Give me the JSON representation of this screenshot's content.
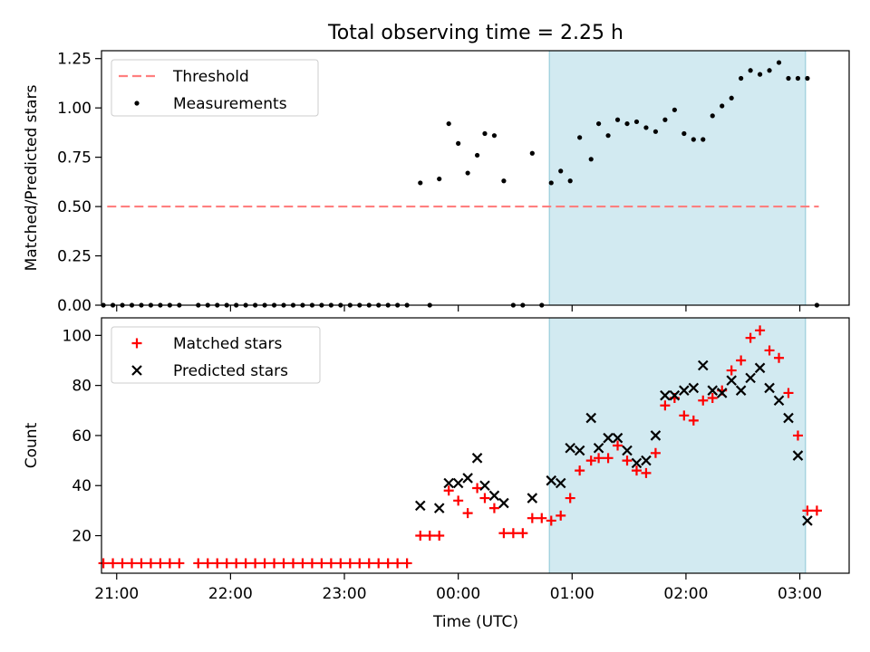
{
  "title": "Total observing time = 2.25 h",
  "chart_data": [
    {
      "type": "scatter",
      "ylabel": "Matched/Predicted stars",
      "ylim": [
        0,
        1.29
      ],
      "yticks": [
        0,
        0.25,
        0.5,
        0.75,
        1.0,
        1.25
      ],
      "ytick_labels": [
        "0.00",
        "0.25",
        "0.50",
        "0.75",
        "1.00",
        "1.25"
      ],
      "threshold": 0.5,
      "threshold_x": [
        "20:55",
        "03:10"
      ],
      "shaded_span": [
        "00:48",
        "03:03"
      ],
      "legend": {
        "placement": "top-left",
        "entries": [
          {
            "label": "Threshold",
            "key": "threshold"
          },
          {
            "label": "Measurements",
            "key": "measurements"
          }
        ]
      },
      "series": [
        {
          "name": "Measurements",
          "points": [
            [
              "20:53",
              0
            ],
            [
              "20:58",
              0
            ],
            [
              "21:03",
              0
            ],
            [
              "21:08",
              0
            ],
            [
              "21:13",
              0
            ],
            [
              "21:18",
              0
            ],
            [
              "21:23",
              0
            ],
            [
              "21:28",
              0
            ],
            [
              "21:33",
              0
            ],
            [
              "21:43",
              0
            ],
            [
              "21:48",
              0
            ],
            [
              "21:53",
              0
            ],
            [
              "21:58",
              0
            ],
            [
              "22:03",
              0
            ],
            [
              "22:08",
              0
            ],
            [
              "22:13",
              0
            ],
            [
              "22:18",
              0
            ],
            [
              "22:23",
              0
            ],
            [
              "22:28",
              0
            ],
            [
              "22:33",
              0
            ],
            [
              "22:38",
              0
            ],
            [
              "22:43",
              0
            ],
            [
              "22:48",
              0
            ],
            [
              "22:53",
              0
            ],
            [
              "22:58",
              0
            ],
            [
              "23:03",
              0
            ],
            [
              "23:08",
              0
            ],
            [
              "23:13",
              0
            ],
            [
              "23:18",
              0
            ],
            [
              "23:23",
              0
            ],
            [
              "23:28",
              0
            ],
            [
              "23:33",
              0
            ],
            [
              "23:40",
              0.62
            ],
            [
              "23:45",
              0
            ],
            [
              "23:50",
              0.64
            ],
            [
              "23:55",
              0.92
            ],
            [
              "00:00",
              0.82
            ],
            [
              "00:05",
              0.67
            ],
            [
              "00:10",
              0.76
            ],
            [
              "00:14",
              0.87
            ],
            [
              "00:19",
              0.86
            ],
            [
              "00:24",
              0.63
            ],
            [
              "00:29",
              0
            ],
            [
              "00:34",
              0
            ],
            [
              "00:39",
              0.77
            ],
            [
              "00:44",
              0
            ],
            [
              "00:49",
              0.62
            ],
            [
              "00:54",
              0.68
            ],
            [
              "00:59",
              0.63
            ],
            [
              "01:04",
              0.85
            ],
            [
              "01:10",
              0.74
            ],
            [
              "01:14",
              0.92
            ],
            [
              "01:19",
              0.86
            ],
            [
              "01:24",
              0.94
            ],
            [
              "01:29",
              0.92
            ],
            [
              "01:34",
              0.93
            ],
            [
              "01:39",
              0.9
            ],
            [
              "01:44",
              0.88
            ],
            [
              "01:49",
              0.94
            ],
            [
              "01:54",
              0.99
            ],
            [
              "01:59",
              0.87
            ],
            [
              "02:04",
              0.84
            ],
            [
              "02:09",
              0.84
            ],
            [
              "02:14",
              0.96
            ],
            [
              "02:19",
              1.01
            ],
            [
              "02:24",
              1.05
            ],
            [
              "02:29",
              1.15
            ],
            [
              "02:34",
              1.19
            ],
            [
              "02:39",
              1.17
            ],
            [
              "02:44",
              1.19
            ],
            [
              "02:49",
              1.23
            ],
            [
              "02:54",
              1.15
            ],
            [
              "02:59",
              1.15
            ],
            [
              "03:04",
              1.15
            ],
            [
              "03:09",
              0
            ]
          ]
        }
      ]
    },
    {
      "type": "scatter",
      "xlabel": "Time (UTC)",
      "ylabel": "Count",
      "ylim": [
        5,
        107
      ],
      "yticks": [
        20,
        40,
        60,
        80,
        100
      ],
      "xticks": [
        "21:00",
        "22:00",
        "23:00",
        "00:00",
        "01:00",
        "02:00",
        "03:00"
      ],
      "shaded_span": [
        "00:48",
        "03:03"
      ],
      "legend": {
        "placement": "top-left",
        "entries": [
          {
            "label": "Matched stars",
            "key": "matched"
          },
          {
            "label": "Predicted stars",
            "key": "predicted"
          }
        ]
      },
      "series": [
        {
          "name": "Matched stars",
          "color": "#ff0000",
          "points": [
            [
              "20:53",
              9
            ],
            [
              "20:58",
              9
            ],
            [
              "21:03",
              9
            ],
            [
              "21:08",
              9
            ],
            [
              "21:13",
              9
            ],
            [
              "21:18",
              9
            ],
            [
              "21:23",
              9
            ],
            [
              "21:28",
              9
            ],
            [
              "21:33",
              9
            ],
            [
              "21:43",
              9
            ],
            [
              "21:48",
              9
            ],
            [
              "21:53",
              9
            ],
            [
              "21:58",
              9
            ],
            [
              "22:03",
              9
            ],
            [
              "22:08",
              9
            ],
            [
              "22:13",
              9
            ],
            [
              "22:18",
              9
            ],
            [
              "22:23",
              9
            ],
            [
              "22:28",
              9
            ],
            [
              "22:33",
              9
            ],
            [
              "22:38",
              9
            ],
            [
              "22:43",
              9
            ],
            [
              "22:48",
              9
            ],
            [
              "22:53",
              9
            ],
            [
              "22:58",
              9
            ],
            [
              "23:03",
              9
            ],
            [
              "23:08",
              9
            ],
            [
              "23:13",
              9
            ],
            [
              "23:18",
              9
            ],
            [
              "23:23",
              9
            ],
            [
              "23:28",
              9
            ],
            [
              "23:33",
              9
            ],
            [
              "23:40",
              20
            ],
            [
              "23:45",
              20
            ],
            [
              "23:50",
              20
            ],
            [
              "23:55",
              38
            ],
            [
              "00:00",
              34
            ],
            [
              "00:05",
              29
            ],
            [
              "00:10",
              39
            ],
            [
              "00:14",
              35
            ],
            [
              "00:19",
              31
            ],
            [
              "00:24",
              21
            ],
            [
              "00:29",
              21
            ],
            [
              "00:34",
              21
            ],
            [
              "00:39",
              27
            ],
            [
              "00:44",
              27
            ],
            [
              "00:49",
              26
            ],
            [
              "00:54",
              28
            ],
            [
              "00:59",
              35
            ],
            [
              "01:04",
              46
            ],
            [
              "01:10",
              50
            ],
            [
              "01:14",
              51
            ],
            [
              "01:19",
              51
            ],
            [
              "01:24",
              56
            ],
            [
              "01:29",
              50
            ],
            [
              "01:34",
              46
            ],
            [
              "01:39",
              45
            ],
            [
              "01:44",
              53
            ],
            [
              "01:49",
              72
            ],
            [
              "01:54",
              75
            ],
            [
              "01:59",
              68
            ],
            [
              "02:04",
              66
            ],
            [
              "02:09",
              74
            ],
            [
              "02:14",
              75
            ],
            [
              "02:19",
              78
            ],
            [
              "02:24",
              86
            ],
            [
              "02:29",
              90
            ],
            [
              "02:34",
              99
            ],
            [
              "02:39",
              102
            ],
            [
              "02:44",
              94
            ],
            [
              "02:49",
              91
            ],
            [
              "02:54",
              77
            ],
            [
              "02:59",
              60
            ],
            [
              "03:04",
              30
            ],
            [
              "03:09",
              30
            ]
          ]
        },
        {
          "name": "Predicted stars",
          "color": "#000000",
          "points": [
            [
              "23:40",
              32
            ],
            [
              "23:50",
              31
            ],
            [
              "23:55",
              41
            ],
            [
              "00:00",
              41
            ],
            [
              "00:05",
              43
            ],
            [
              "00:10",
              51
            ],
            [
              "00:14",
              40
            ],
            [
              "00:19",
              36
            ],
            [
              "00:24",
              33
            ],
            [
              "00:39",
              35
            ],
            [
              "00:49",
              42
            ],
            [
              "00:54",
              41
            ],
            [
              "00:59",
              55
            ],
            [
              "01:04",
              54
            ],
            [
              "01:10",
              67
            ],
            [
              "01:14",
              55
            ],
            [
              "01:19",
              59
            ],
            [
              "01:24",
              59
            ],
            [
              "01:29",
              54
            ],
            [
              "01:34",
              49
            ],
            [
              "01:39",
              50
            ],
            [
              "01:44",
              60
            ],
            [
              "01:49",
              76
            ],
            [
              "01:54",
              76
            ],
            [
              "01:59",
              78
            ],
            [
              "02:04",
              79
            ],
            [
              "02:09",
              88
            ],
            [
              "02:14",
              78
            ],
            [
              "02:19",
              77
            ],
            [
              "02:24",
              82
            ],
            [
              "02:29",
              78
            ],
            [
              "02:34",
              83
            ],
            [
              "02:39",
              87
            ],
            [
              "02:44",
              79
            ],
            [
              "02:49",
              74
            ],
            [
              "02:54",
              67
            ],
            [
              "02:59",
              52
            ],
            [
              "03:04",
              26
            ]
          ]
        }
      ]
    }
  ],
  "colors": {
    "threshold": "#ff7f7f",
    "span": "#add8e6",
    "measurements": "#000000",
    "matched": "#ff0000",
    "predicted": "#000000"
  }
}
